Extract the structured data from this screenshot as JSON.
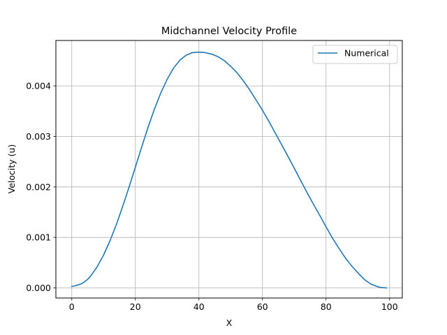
{
  "chart_data": {
    "type": "line",
    "title": "Midchannel Velocity Profile",
    "xlabel": "X",
    "ylabel": "Velocity (u)",
    "xlim": [
      -5,
      104
    ],
    "ylim": [
      -0.0002,
      0.0049
    ],
    "xticks": [
      0,
      20,
      40,
      60,
      80,
      100
    ],
    "yticks": [
      0.0,
      0.001,
      0.002,
      0.003,
      0.004
    ],
    "xtick_labels": [
      "0",
      "20",
      "40",
      "60",
      "80",
      "100"
    ],
    "ytick_labels": [
      "0.000",
      "0.001",
      "0.002",
      "0.003",
      "0.004"
    ],
    "grid": true,
    "legend_position": "top-right",
    "series": [
      {
        "name": "Numerical",
        "color": "#1f77b4",
        "x": [
          0,
          1,
          2,
          3,
          4,
          5,
          6,
          8,
          10,
          12,
          14,
          16,
          18,
          20,
          22,
          24,
          26,
          28,
          30,
          32,
          34,
          36,
          38,
          40,
          42,
          44,
          46,
          48,
          50,
          52,
          54,
          56,
          58,
          60,
          62,
          64,
          66,
          68,
          70,
          72,
          74,
          76,
          78,
          80,
          82,
          84,
          86,
          88,
          90,
          92,
          94,
          96,
          97,
          98,
          99
        ],
        "y": [
          3e-05,
          4e-05,
          6e-05,
          8e-05,
          0.00012,
          0.00017,
          0.00024,
          0.00042,
          0.00065,
          0.00093,
          0.00125,
          0.00161,
          0.00199,
          0.00239,
          0.00279,
          0.00318,
          0.00354,
          0.00386,
          0.00413,
          0.00435,
          0.00451,
          0.00461,
          0.00466,
          0.00467,
          0.00466,
          0.00463,
          0.00458,
          0.0045,
          0.00439,
          0.00426,
          0.0041,
          0.00392,
          0.00372,
          0.00352,
          0.0033,
          0.00307,
          0.00284,
          0.00261,
          0.00237,
          0.00213,
          0.00189,
          0.00166,
          0.00144,
          0.00121,
          0.00099,
          0.00079,
          0.0006,
          0.00044,
          0.0003,
          0.00017,
          8e-05,
          3e-05,
          1e-05,
          5e-06,
          0.0
        ]
      }
    ]
  }
}
